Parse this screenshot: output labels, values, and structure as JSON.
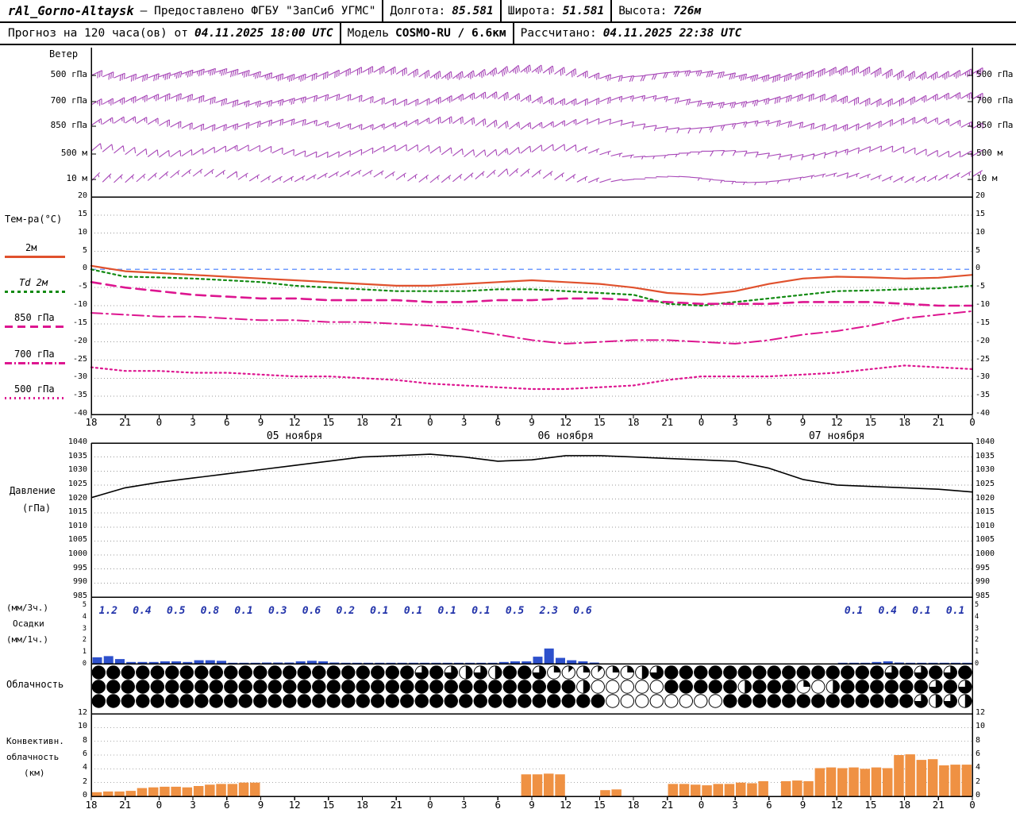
{
  "header": {
    "row1": {
      "station": "rAl_Gorno-Altaysk",
      "provider": "— Предоставлено ФГБУ \"ЗапСиб УГМС\"",
      "lon_label": "Долгота:",
      "lon": "85.581",
      "lat_label": "Широта:",
      "lat": "51.581",
      "alt_label": "Высота:",
      "alt": "726м"
    },
    "row2": {
      "forecast_label": "Прогноз на 120 часа(ов) от",
      "run_time": "04.11.2025 18:00 UTC",
      "model_label": "Модель",
      "model": "COSMO-RU / 6.6км",
      "calc_label": "Рассчитано:",
      "calc_time": "04.11.2025 22:38 UTC"
    }
  },
  "labels": {
    "wind": "Ветер",
    "wind_levels": [
      "500 гПа",
      "700 гПа",
      "850 гПа",
      "500 м",
      "10 м"
    ],
    "temp_title": "Тем-ра(°C)",
    "pressure": [
      "Давление",
      "(гПа)"
    ],
    "precip": [
      "(мм/3ч.)",
      "Осадки",
      "(мм/1ч.)"
    ],
    "cloud": "Облачность",
    "convective": [
      "Конвективн.",
      "облачность",
      "(км)"
    ]
  },
  "time_axis": {
    "hours": [
      "18",
      "21",
      "0",
      "3",
      "6",
      "9",
      "12",
      "15",
      "18",
      "21",
      "0",
      "3",
      "6",
      "9",
      "12",
      "15",
      "18",
      "21",
      "0",
      "3",
      "6",
      "9",
      "12",
      "15",
      "18",
      "21",
      "0"
    ],
    "dates": [
      {
        "label": "05 ноября",
        "hour": 18
      },
      {
        "label": "06 ноября",
        "hour": 42
      },
      {
        "label": "07 ноября",
        "hour": 66
      }
    ]
  },
  "colors": {
    "wind": "#a848b8",
    "grid": "#999999",
    "axis": "#000000"
  },
  "chart_data": [
    {
      "name": "wind",
      "type": "wind-barbs",
      "unit": "kt",
      "keypoint_step_hours": 6,
      "levels": [
        {
          "label": "500 гПа",
          "dir": [
            65,
            70,
            72,
            68,
            60,
            55,
            50,
            55,
            85,
            80,
            70,
            60,
            55,
            60
          ],
          "spd": [
            30,
            35,
            40,
            35,
            30,
            35,
            40,
            30,
            20,
            30,
            40,
            45,
            40,
            35
          ]
        },
        {
          "label": "700 гПа",
          "dir": [
            60,
            65,
            70,
            72,
            65,
            60,
            55,
            60,
            75,
            80,
            72,
            62,
            58,
            60
          ],
          "spd": [
            25,
            30,
            30,
            25,
            20,
            25,
            30,
            25,
            15,
            25,
            30,
            35,
            30,
            25
          ]
        },
        {
          "label": "850 гПа",
          "dir": [
            55,
            60,
            68,
            70,
            65,
            58,
            52,
            60,
            80,
            85,
            75,
            65,
            60,
            62
          ],
          "spd": [
            15,
            20,
            25,
            20,
            15,
            20,
            20,
            15,
            10,
            15,
            20,
            25,
            20,
            18
          ]
        },
        {
          "label": "500 м",
          "dir": [
            50,
            55,
            60,
            65,
            62,
            55,
            50,
            58,
            85,
            90,
            80,
            70,
            62,
            60
          ],
          "spd": [
            10,
            12,
            15,
            12,
            10,
            12,
            15,
            10,
            5,
            10,
            12,
            15,
            12,
            10
          ]
        },
        {
          "label": "10 м",
          "dir": [
            45,
            50,
            55,
            60,
            58,
            52,
            48,
            55,
            90,
            95,
            85,
            72,
            60,
            58
          ],
          "spd": [
            6,
            8,
            10,
            8,
            6,
            8,
            10,
            6,
            3,
            6,
            8,
            10,
            8,
            6
          ]
        }
      ]
    },
    {
      "name": "temperature",
      "type": "line",
      "title": "Тем-ра(°C)",
      "ylim": [
        -40,
        20
      ],
      "ystep": 5,
      "x_step_hours": 3,
      "zero_line_color": "#6f9bff",
      "series": [
        {
          "name": "2м",
          "color": "#e0512d",
          "dash": "",
          "width": 2.2,
          "values": [
            1,
            -0.5,
            -1,
            -1.5,
            -2,
            -2.5,
            -3,
            -3.5,
            -4,
            -4.5,
            -4.5,
            -4,
            -3.5,
            -3,
            -3.5,
            -4,
            -5,
            -6.5,
            -7,
            -6,
            -4,
            -2.5,
            -2,
            -2.2,
            -2.5,
            -2.3,
            -1.5
          ]
        },
        {
          "name": "Td 2м",
          "color": "#128a12",
          "dash": "3 4",
          "width": 2.2,
          "values": [
            0,
            -2,
            -2.2,
            -2.5,
            -3,
            -3.5,
            -4.5,
            -5,
            -5.5,
            -6,
            -6,
            -6,
            -5.5,
            -5.5,
            -6,
            -6.5,
            -7,
            -9.5,
            -10,
            -9,
            -8,
            -7,
            -6,
            -5.8,
            -5.5,
            -5.2,
            -4.5
          ]
        },
        {
          "name": "850 гПа",
          "color": "#dd1690",
          "dash": "12 7",
          "width": 2.6,
          "values": [
            -3.5,
            -5,
            -6,
            -7,
            -7.5,
            -8,
            -8,
            -8.5,
            -8.5,
            -8.5,
            -9,
            -9,
            -8.5,
            -8.5,
            -8,
            -8,
            -8.5,
            -9,
            -9.5,
            -9.5,
            -9.5,
            -9,
            -9,
            -9,
            -9.5,
            -10,
            -10
          ]
        },
        {
          "name": "700 гПа",
          "color": "#dd1690",
          "dash": "14 5 2 5",
          "width": 2.0,
          "values": [
            -12,
            -12.5,
            -13,
            -13,
            -13.5,
            -14,
            -14,
            -14.5,
            -14.5,
            -15,
            -15.5,
            -16.5,
            -18,
            -19.5,
            -20.5,
            -20,
            -19.5,
            -19.5,
            -20,
            -20.5,
            -19.5,
            -18,
            -17,
            -15.5,
            -13.5,
            -12.5,
            -11.5
          ]
        },
        {
          "name": "500 гПа",
          "color": "#dd1690",
          "dash": "2 4",
          "width": 2.2,
          "values": [
            -27,
            -28,
            -28,
            -28.5,
            -28.5,
            -29,
            -29.5,
            -29.5,
            -30,
            -30.5,
            -31.5,
            -32,
            -32.5,
            -33,
            -33,
            -32.5,
            -32,
            -30.5,
            -29.5,
            -29.5,
            -29.5,
            -29,
            -28.5,
            -27.5,
            -26.5,
            -27,
            -27.5
          ]
        }
      ]
    },
    {
      "name": "pressure",
      "type": "line",
      "title": "Давление (гПа)",
      "ylim": [
        985,
        1040
      ],
      "ystep": 5,
      "x_step_hours": 3,
      "color": "#000000",
      "values": [
        1020.5,
        1024,
        1026,
        1027.5,
        1029,
        1030.5,
        1032,
        1033.5,
        1035,
        1035.5,
        1036,
        1035,
        1033.5,
        1034,
        1035.5,
        1035.5,
        1035,
        1034.5,
        1034,
        1033.5,
        1031,
        1027,
        1025,
        1024.5,
        1024,
        1023.5,
        1022.5
      ]
    },
    {
      "name": "precipitation",
      "type": "bar",
      "title": "Осадки",
      "ylim": [
        0,
        5
      ],
      "bar_color": "#2d50cc",
      "text_color": "#2233aa",
      "amounts_3h": [
        "1.2",
        "0.4",
        "0.5",
        "0.8",
        "0.1",
        "0.3",
        "0.6",
        "0.2",
        "0.1",
        "0.1",
        "0.1",
        "0.1",
        "0.5",
        "2.3",
        "0.6",
        "",
        "",
        "",
        "",
        "",
        "",
        "",
        "0.1",
        "0.4",
        "0.1",
        "0.1"
      ],
      "hourly": [
        0.55,
        0.65,
        0.4,
        0.15,
        0.15,
        0.15,
        0.2,
        0.2,
        0.15,
        0.3,
        0.3,
        0.25,
        0.05,
        0.05,
        0.05,
        0.1,
        0.1,
        0.1,
        0.2,
        0.25,
        0.2,
        0.1,
        0.05,
        0.05,
        0.05,
        0.05,
        0.03,
        0.05,
        0.05,
        0.03,
        0.05,
        0.03,
        0.05,
        0.05,
        0.03,
        0.05,
        0.15,
        0.2,
        0.2,
        0.6,
        1.3,
        0.5,
        0.3,
        0.2,
        0.1,
        0,
        0,
        0,
        0,
        0,
        0,
        0,
        0,
        0,
        0,
        0,
        0,
        0,
        0,
        0,
        0,
        0,
        0,
        0,
        0,
        0,
        0.03,
        0.05,
        0.03,
        0.15,
        0.2,
        0.1,
        0.05,
        0.03,
        0.03,
        0.05,
        0.03,
        0.05
      ]
    },
    {
      "name": "cloudiness",
      "type": "symbols",
      "scale": "eighths",
      "rows": [
        [
          8,
          8,
          8,
          8,
          8,
          8,
          8,
          8,
          8,
          8,
          8,
          8,
          8,
          8,
          8,
          8,
          8,
          8,
          8,
          8,
          8,
          8,
          6,
          8,
          6,
          4,
          6,
          4,
          8,
          8,
          6,
          2,
          1,
          2,
          1,
          2,
          2,
          4,
          6,
          8,
          8,
          8,
          8,
          8,
          8,
          8,
          8,
          8,
          8,
          8,
          8,
          8,
          8,
          8,
          6,
          8,
          6,
          8,
          6,
          8
        ],
        [
          8,
          8,
          8,
          8,
          8,
          8,
          8,
          8,
          8,
          8,
          8,
          8,
          8,
          8,
          8,
          8,
          8,
          8,
          8,
          8,
          8,
          8,
          8,
          8,
          8,
          8,
          8,
          8,
          8,
          8,
          8,
          8,
          8,
          4,
          0,
          0,
          0,
          0,
          0,
          8,
          8,
          8,
          8,
          8,
          4,
          8,
          8,
          8,
          2,
          0,
          4,
          8,
          8,
          8,
          8,
          8,
          8,
          6,
          8,
          6
        ],
        [
          8,
          8,
          8,
          8,
          8,
          8,
          8,
          8,
          8,
          8,
          8,
          8,
          8,
          8,
          8,
          8,
          8,
          8,
          8,
          8,
          8,
          8,
          8,
          8,
          8,
          8,
          8,
          8,
          8,
          8,
          8,
          8,
          8,
          8,
          8,
          0,
          0,
          0,
          0,
          0,
          0,
          0,
          0,
          8,
          8,
          8,
          8,
          8,
          8,
          8,
          8,
          8,
          8,
          8,
          8,
          8,
          6,
          4,
          6,
          4
        ]
      ]
    },
    {
      "name": "convective",
      "type": "bar",
      "title": "Конвективн. облачность (км)",
      "ylim": [
        0,
        12
      ],
      "ystep": 2,
      "bar_color": "#ef9143",
      "hourly": [
        0.6,
        0.7,
        0.7,
        0.8,
        1.2,
        1.3,
        1.4,
        1.4,
        1.3,
        1.5,
        1.7,
        1.8,
        1.8,
        2.0,
        2.0,
        0,
        0,
        0,
        0,
        0,
        0,
        0,
        0,
        0,
        0,
        0,
        0,
        0,
        0,
        0,
        0,
        0,
        0,
        0,
        0,
        0,
        0,
        0,
        3.2,
        3.2,
        3.3,
        3.2,
        0,
        0,
        0,
        0.9,
        1.0,
        0,
        0,
        0,
        0,
        1.8,
        1.8,
        1.7,
        1.6,
        1.8,
        1.8,
        2.0,
        1.9,
        2.2,
        0,
        2.2,
        2.3,
        2.2,
        4.1,
        4.2,
        4.1,
        4.2,
        4.0,
        4.2,
        4.1,
        6.0,
        6.1,
        5.3,
        5.4,
        4.5,
        4.6,
        4.6
      ]
    }
  ]
}
